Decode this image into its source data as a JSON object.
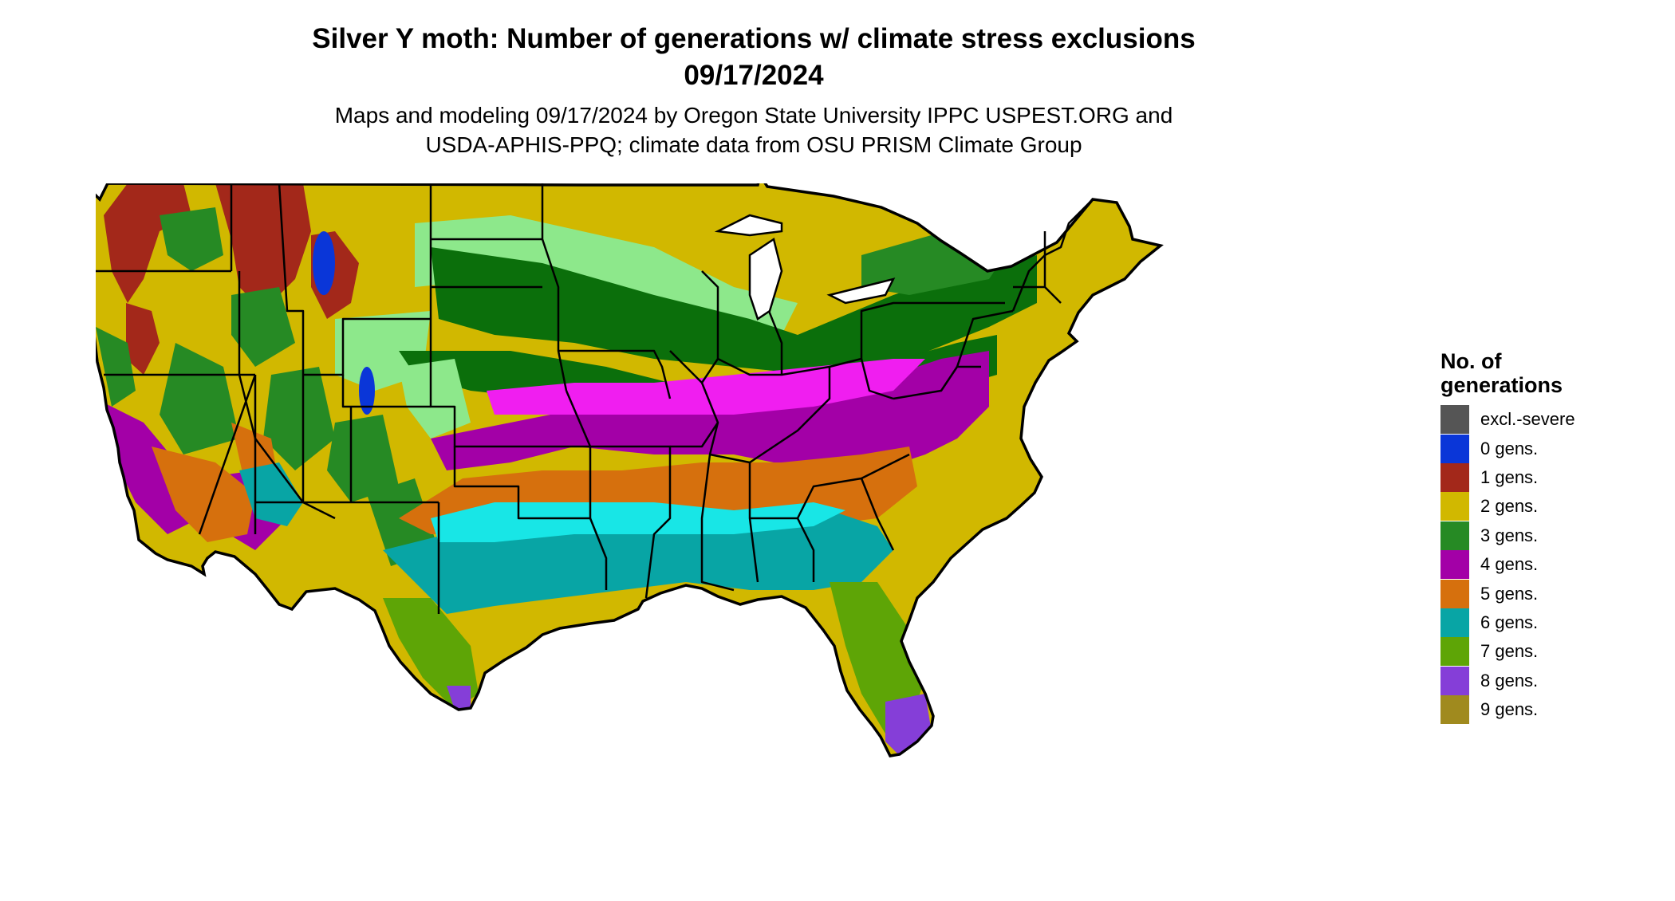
{
  "title": {
    "line1": "Silver Y moth: Number of generations w/ climate stress exclusions",
    "line2": "09/17/2024"
  },
  "subtitle": {
    "line1": "Maps and modeling 09/17/2024 by Oregon State University IPPC USPEST.ORG and",
    "line2": "USDA-APHIS-PPQ; climate data from OSU PRISM Climate Group"
  },
  "legend": {
    "title_line1": "No. of",
    "title_line2": "generations",
    "items": [
      {
        "label": "excl.-severe",
        "color": "#555555"
      },
      {
        "label": "0 gens.",
        "color": "#0a36d8"
      },
      {
        "label": "1 gens.",
        "color": "#a3281a"
      },
      {
        "label": "2 gens.",
        "color": "#d1b800"
      },
      {
        "label": "3 gens.",
        "color": "#268a24"
      },
      {
        "label": "4 gens.",
        "color": "#a300a7"
      },
      {
        "label": "5 gens.",
        "color": "#d6700d"
      },
      {
        "label": "6 gens.",
        "color": "#08a5a5"
      },
      {
        "label": "7 gens.",
        "color": "#5ea506"
      },
      {
        "label": "8 gens.",
        "color": "#853ed8"
      },
      {
        "label": "9 gens.",
        "color": "#a08a1e"
      }
    ]
  },
  "map_colors": {
    "light_green": "#8de88b",
    "dark_green": "#0b6f0b",
    "magenta": "#f01ef0",
    "cyan": "#18e6e6",
    "border": "#000000"
  }
}
